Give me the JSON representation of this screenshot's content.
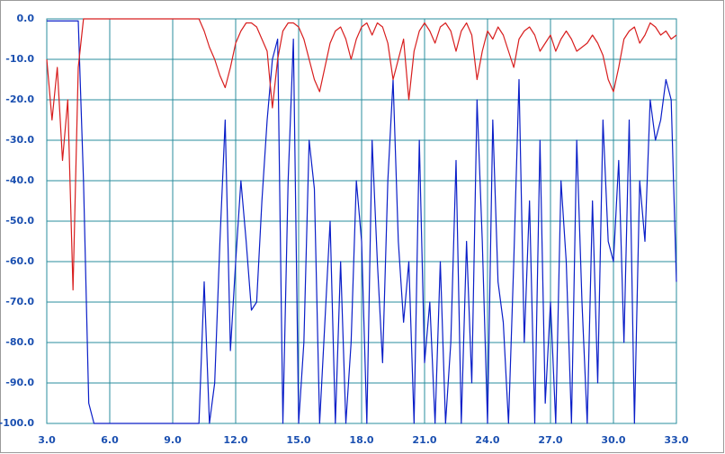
{
  "chart_data": {
    "type": "line",
    "grid": true,
    "x": [
      3,
      3.25,
      3.5,
      3.75,
      4,
      4.25,
      4.5,
      4.75,
      5,
      5.25,
      5.5,
      5.75,
      6,
      6.25,
      6.5,
      6.75,
      7,
      7.25,
      7.5,
      7.75,
      8,
      8.25,
      8.5,
      8.75,
      9,
      9.25,
      9.5,
      9.75,
      10,
      10.25,
      10.5,
      10.75,
      11,
      11.25,
      11.5,
      11.75,
      12,
      12.25,
      12.5,
      12.75,
      13,
      13.25,
      13.5,
      13.75,
      14,
      14.25,
      14.5,
      14.75,
      15,
      15.25,
      15.5,
      15.75,
      16,
      16.25,
      16.5,
      16.75,
      17,
      17.25,
      17.5,
      17.75,
      18,
      18.25,
      18.5,
      18.75,
      19,
      19.25,
      19.5,
      19.75,
      20,
      20.25,
      20.5,
      20.75,
      21,
      21.25,
      21.5,
      21.75,
      22,
      22.25,
      22.5,
      22.75,
      23,
      23.25,
      23.5,
      23.75,
      24,
      24.25,
      24.5,
      24.75,
      25,
      25.25,
      25.5,
      25.75,
      26,
      26.25,
      26.5,
      26.75,
      27,
      27.25,
      27.5,
      27.75,
      28,
      28.25,
      28.5,
      28.75,
      29,
      29.25,
      29.5,
      29.75,
      30,
      30.25,
      30.5,
      30.75,
      31,
      31.25,
      31.5,
      31.75,
      32,
      32.25,
      32.5,
      32.75,
      33
    ],
    "series": [
      {
        "color": "#0a1ec8",
        "values": [
          -0.5,
          -0.5,
          -0.5,
          -0.5,
          -0.5,
          -0.5,
          -0.5,
          -40,
          -95,
          -100,
          -100,
          -100,
          -100,
          -100,
          -100,
          -100,
          -100,
          -100,
          -100,
          -100,
          -100,
          -100,
          -100,
          -100,
          -100,
          -100,
          -100,
          -100,
          -100,
          -100,
          -65,
          -100,
          -90,
          -55,
          -25,
          -82,
          -60,
          -40,
          -55,
          -72,
          -70,
          -45,
          -25,
          -10,
          -5,
          -100,
          -40,
          -5,
          -100,
          -80,
          -30,
          -42,
          -100,
          -75,
          -50,
          -100,
          -60,
          -100,
          -80,
          -40,
          -55,
          -100,
          -30,
          -60,
          -85,
          -40,
          -15,
          -55,
          -75,
          -60,
          -100,
          -30,
          -85,
          -70,
          -100,
          -60,
          -100,
          -80,
          -35,
          -100,
          -55,
          -90,
          -20,
          -55,
          -100,
          -25,
          -65,
          -75,
          -100,
          -60,
          -15,
          -80,
          -45,
          -100,
          -30,
          -95,
          -70,
          -100,
          -40,
          -60,
          -100,
          -30,
          -70,
          -100,
          -45,
          -90,
          -25,
          -55,
          -60,
          -35,
          -80,
          -25,
          -100,
          -40,
          -55,
          -20,
          -30,
          -25,
          -15,
          -20,
          -65
        ]
      },
      {
        "color": "#d81e1e",
        "values": [
          -10,
          -25,
          -12,
          -35,
          -20,
          -67,
          -12,
          0,
          0,
          0,
          0,
          0,
          0,
          0,
          0,
          0,
          0,
          0,
          0,
          0,
          0,
          0,
          0,
          0,
          0,
          0,
          0,
          0,
          0,
          0,
          -3,
          -7,
          -10,
          -14,
          -17,
          -12,
          -6,
          -3,
          -1,
          -1,
          -2,
          -5,
          -8,
          -22,
          -10,
          -3,
          -1,
          -1,
          -2,
          -5,
          -10,
          -15,
          -18,
          -12,
          -6,
          -3,
          -2,
          -5,
          -10,
          -5,
          -2,
          -1,
          -4,
          -1,
          -2,
          -6,
          -15,
          -10,
          -5,
          -20,
          -8,
          -3,
          -1,
          -3,
          -6,
          -2,
          -1,
          -3,
          -8,
          -3,
          -1,
          -4,
          -15,
          -8,
          -3,
          -5,
          -2,
          -4,
          -8,
          -12,
          -5,
          -3,
          -2,
          -4,
          -8,
          -6,
          -4,
          -8,
          -5,
          -3,
          -5,
          -8,
          -7,
          -6,
          -4,
          -6,
          -9,
          -15,
          -18,
          -12,
          -5,
          -3,
          -2,
          -6,
          -4,
          -1,
          -2,
          -4,
          -3,
          -5,
          -4
        ]
      }
    ],
    "xlim": [
      3,
      33
    ],
    "xticks": [
      {
        "value": 3,
        "label": "3.0"
      },
      {
        "value": 6,
        "label": "6.0"
      },
      {
        "value": 9,
        "label": "9.0"
      },
      {
        "value": 12,
        "label": "12.0"
      },
      {
        "value": 15,
        "label": "15.0"
      },
      {
        "value": 18,
        "label": "18.0"
      },
      {
        "value": 21,
        "label": "21.0"
      },
      {
        "value": 24,
        "label": "24.0"
      },
      {
        "value": 27,
        "label": "27.0"
      },
      {
        "value": 30,
        "label": "30.0"
      },
      {
        "value": 33,
        "label": "33.0"
      }
    ],
    "ylim": [
      -100,
      0
    ],
    "yticks": [
      {
        "value": 0,
        "label": "0.0"
      },
      {
        "value": -10,
        "label": "-10.0"
      },
      {
        "value": -20,
        "label": "-20.0"
      },
      {
        "value": -30,
        "label": "-30.0"
      },
      {
        "value": -40,
        "label": "-40.0"
      },
      {
        "value": -50,
        "label": "-50.0"
      },
      {
        "value": -60,
        "label": "-60.0"
      },
      {
        "value": -70,
        "label": "-70.0"
      },
      {
        "value": -80,
        "label": "-80.0"
      },
      {
        "value": -90,
        "label": "-90.0"
      },
      {
        "value": -100,
        "label": "-100.0"
      }
    ]
  }
}
